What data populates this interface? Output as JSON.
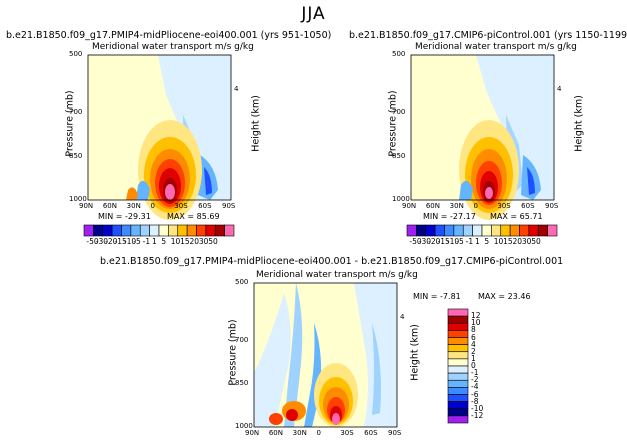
{
  "figure": {
    "season": "JJA",
    "panel_title": "Meridional water transport",
    "units": "m/s g/kg",
    "ylabel_left": "Pressure (mb)",
    "ylabel_right": "Height (km)"
  },
  "panels": [
    {
      "run": "b.e21.B1850.f09_g17.PMIP4-midPliocene-eoi400.001 (yrs 951-1050)",
      "min_label": "MIN =",
      "min": "-29.31",
      "max_label": "MAX =",
      "max": "85.69"
    },
    {
      "run": "b.e21.B1850.f09_g17.CMIP6-piControl.001 (yrs 1150-1199)",
      "min_label": "MIN =",
      "min": "-27.17",
      "max_label": "MAX =",
      "max": "65.71"
    },
    {
      "run": "b.e21.B1850.f09_g17.PMIP4-midPliocene-eoi400.001 - b.e21.B1850.f09_g17.CMIP6-piControl.001",
      "min_label": "MIN =",
      "min": "-7.81",
      "max_label": "MAX =",
      "max": "23.46"
    }
  ],
  "colorbar_top": {
    "labels": [
      "-50",
      "-30",
      "-20",
      "-15",
      "-10",
      "-5",
      "-1",
      "1",
      "5",
      "10",
      "15",
      "20",
      "30",
      "50"
    ],
    "colors": [
      "#a020f0",
      "#00008b",
      "#0000cd",
      "#1e50ff",
      "#3c8cff",
      "#64b4ff",
      "#a0d2ff",
      "#dcf0ff",
      "#ffffd0",
      "#ffe680",
      "#ffc000",
      "#ff8c00",
      "#ff4000",
      "#e00000",
      "#a00000",
      "#ff69b4"
    ]
  },
  "colorbar_diff": {
    "labels": [
      "12",
      "10",
      "8",
      "6",
      "4",
      "2",
      "1",
      "0",
      "-1",
      "-2",
      "-4",
      "-6",
      "-8",
      "-10",
      "-12"
    ],
    "colors": [
      "#ff69b4",
      "#a00000",
      "#e00000",
      "#ff4000",
      "#ff8c00",
      "#ffc000",
      "#ffe680",
      "#ffffd0",
      "#dcf0ff",
      "#a0d2ff",
      "#64b4ff",
      "#3c8cff",
      "#1e50ff",
      "#0000cd",
      "#00008b",
      "#a020f0"
    ]
  },
  "chart_data": [
    {
      "type": "heatmap",
      "title": "Meridional water transport",
      "x_ticks": [
        "90N",
        "60N",
        "30N",
        "0",
        "30S",
        "60S",
        "90S"
      ],
      "y_ticks": [
        "500",
        "700",
        "850",
        "1000"
      ],
      "y_ticks_right": [
        "4"
      ],
      "xlabel": "",
      "ylabel": "Pressure (mb)",
      "min": -29.31,
      "max": 85.69
    },
    {
      "type": "heatmap",
      "title": "Meridional water transport",
      "x_ticks": [
        "90N",
        "60N",
        "30N",
        "0",
        "30S",
        "60S",
        "90S"
      ],
      "y_ticks": [
        "500",
        "700",
        "850",
        "1000"
      ],
      "y_ticks_right": [
        "4"
      ],
      "xlabel": "",
      "ylabel": "Pressure (mb)",
      "min": -27.17,
      "max": 65.71
    },
    {
      "type": "heatmap",
      "title": "Meridional water transport",
      "x_ticks": [
        "90N",
        "60N",
        "30N",
        "0",
        "30S",
        "60S",
        "90S"
      ],
      "y_ticks": [
        "500",
        "700",
        "850",
        "1000"
      ],
      "y_ticks_right": [
        "4"
      ],
      "xlabel": "",
      "ylabel": "Pressure (mb)",
      "min": -7.81,
      "max": 23.46
    }
  ]
}
